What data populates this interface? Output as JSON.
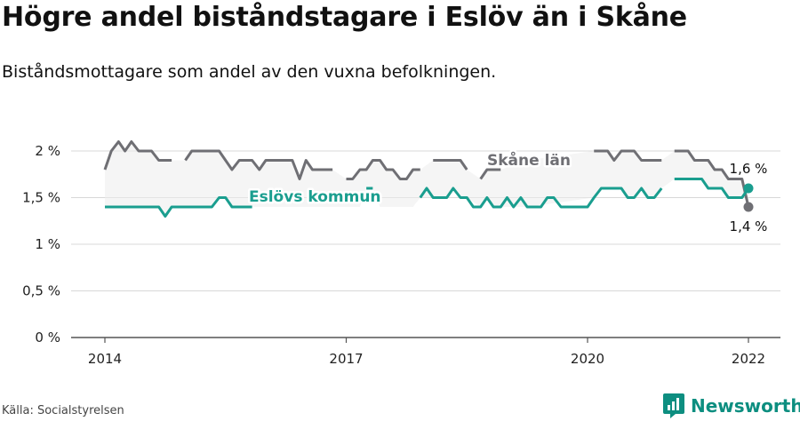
{
  "title": "Högre andel biståndstagare i Eslöv än i Skåne",
  "subtitle": "Biståndsmottagare som andel av den vuxna befolkningen.",
  "source": "Källa: Socialstyrelsen",
  "brand": "Newsworthy",
  "colors": {
    "skane": "#6f6f74",
    "eslov": "#1a9e8f",
    "band": "#ececec",
    "axis": "#555555",
    "grid": "#d8d8d8",
    "brand": "#0d8e80"
  },
  "chart_data": {
    "type": "line",
    "title": "Högre andel biståndstagare i Eslöv än i Skåne",
    "subtitle": "Biståndsmottagare som andel av den vuxna befolkningen.",
    "xlabel": "",
    "ylabel": "",
    "x_unit": "year (monthly observations)",
    "xlim": [
      2013.92,
      2022.35
    ],
    "ylim": [
      0,
      2.1
    ],
    "yticks": [
      0,
      0.5,
      1,
      1.5,
      2
    ],
    "ytick_labels": [
      "0 %",
      "0,5 %",
      "1 %",
      "1,5 %",
      "2 %"
    ],
    "xticks": [
      2014,
      2017,
      2020,
      2022
    ],
    "xtick_labels": [
      "2014",
      "2017",
      "2020",
      "2022"
    ],
    "grid": true,
    "legend": "inline labels",
    "series": [
      {
        "name": "Skåne län",
        "label_color": "skane",
        "end_label": "1,4 %",
        "points": [
          [
            2014.0,
            1.8
          ],
          [
            2014.08,
            2.0
          ],
          [
            2014.17,
            2.1
          ],
          [
            2014.25,
            2.0
          ],
          [
            2014.33,
            2.1
          ],
          [
            2014.42,
            2.0
          ],
          [
            2014.5,
            2.0
          ],
          [
            2014.58,
            2.0
          ],
          [
            2014.67,
            1.9
          ],
          [
            2014.75,
            1.9
          ],
          [
            2014.83,
            1.9
          ],
          [
            2014.92,
            null
          ],
          [
            2015.0,
            1.9
          ],
          [
            2015.08,
            2.0
          ],
          [
            2015.17,
            2.0
          ],
          [
            2015.25,
            2.0
          ],
          [
            2015.33,
            2.0
          ],
          [
            2015.42,
            2.0
          ],
          [
            2015.5,
            1.9
          ],
          [
            2015.58,
            1.8
          ],
          [
            2015.67,
            1.9
          ],
          [
            2015.75,
            1.9
          ],
          [
            2015.83,
            1.9
          ],
          [
            2015.92,
            1.8
          ],
          [
            2016.0,
            1.9
          ],
          [
            2016.08,
            1.9
          ],
          [
            2016.17,
            1.9
          ],
          [
            2016.25,
            1.9
          ],
          [
            2016.33,
            1.9
          ],
          [
            2016.42,
            1.7
          ],
          [
            2016.5,
            1.9
          ],
          [
            2016.58,
            1.8
          ],
          [
            2016.67,
            1.8
          ],
          [
            2016.75,
            1.8
          ],
          [
            2016.83,
            1.8
          ],
          [
            2016.92,
            null
          ],
          [
            2017.0,
            1.7
          ],
          [
            2017.08,
            1.7
          ],
          [
            2017.17,
            1.8
          ],
          [
            2017.25,
            1.8
          ],
          [
            2017.33,
            1.9
          ],
          [
            2017.42,
            1.9
          ],
          [
            2017.5,
            1.8
          ],
          [
            2017.58,
            1.8
          ],
          [
            2017.67,
            1.7
          ],
          [
            2017.75,
            1.7
          ],
          [
            2017.83,
            1.8
          ],
          [
            2017.92,
            1.8
          ],
          [
            2018.0,
            null
          ],
          [
            2018.08,
            1.9
          ],
          [
            2018.17,
            1.9
          ],
          [
            2018.25,
            1.9
          ],
          [
            2018.33,
            1.9
          ],
          [
            2018.42,
            1.9
          ],
          [
            2018.5,
            1.8
          ],
          [
            2018.58,
            null
          ],
          [
            2018.67,
            1.7
          ],
          [
            2018.75,
            1.8
          ],
          [
            2018.83,
            1.8
          ],
          [
            2018.92,
            1.8
          ],
          [
            2019.0,
            null
          ],
          [
            2019.25,
            1.9
          ],
          [
            2019.33,
            null
          ],
          [
            2020.08,
            2.0
          ],
          [
            2020.17,
            2.0
          ],
          [
            2020.25,
            2.0
          ],
          [
            2020.33,
            1.9
          ],
          [
            2020.42,
            2.0
          ],
          [
            2020.5,
            2.0
          ],
          [
            2020.58,
            2.0
          ],
          [
            2020.67,
            1.9
          ],
          [
            2020.75,
            1.9
          ],
          [
            2020.83,
            1.9
          ],
          [
            2020.92,
            1.9
          ],
          [
            2021.0,
            null
          ],
          [
            2021.08,
            2.0
          ],
          [
            2021.17,
            2.0
          ],
          [
            2021.25,
            2.0
          ],
          [
            2021.33,
            1.9
          ],
          [
            2021.42,
            1.9
          ],
          [
            2021.5,
            1.9
          ],
          [
            2021.58,
            1.8
          ],
          [
            2021.67,
            1.8
          ],
          [
            2021.75,
            1.7
          ],
          [
            2021.83,
            1.7
          ],
          [
            2021.92,
            1.7
          ],
          [
            2022.0,
            1.4
          ]
        ]
      },
      {
        "name": "Eslövs kommun",
        "label_color": "eslov",
        "end_label": "1,6 %",
        "points": [
          [
            2014.0,
            1.4
          ],
          [
            2014.08,
            1.4
          ],
          [
            2014.17,
            1.4
          ],
          [
            2014.25,
            1.4
          ],
          [
            2014.33,
            1.4
          ],
          [
            2014.42,
            1.4
          ],
          [
            2014.5,
            1.4
          ],
          [
            2014.58,
            1.4
          ],
          [
            2014.67,
            1.4
          ],
          [
            2014.75,
            1.3
          ],
          [
            2014.83,
            1.4
          ],
          [
            2014.92,
            1.4
          ],
          [
            2015.0,
            1.4
          ],
          [
            2015.08,
            1.4
          ],
          [
            2015.17,
            1.4
          ],
          [
            2015.25,
            1.4
          ],
          [
            2015.33,
            1.4
          ],
          [
            2015.42,
            1.5
          ],
          [
            2015.5,
            1.5
          ],
          [
            2015.58,
            1.4
          ],
          [
            2015.67,
            1.4
          ],
          [
            2015.75,
            1.4
          ],
          [
            2015.83,
            1.4
          ],
          [
            2015.92,
            null
          ],
          [
            2017.25,
            1.6
          ],
          [
            2017.33,
            1.6
          ],
          [
            2017.42,
            null
          ],
          [
            2017.92,
            1.5
          ],
          [
            2018.0,
            1.6
          ],
          [
            2018.08,
            1.5
          ],
          [
            2018.17,
            1.5
          ],
          [
            2018.25,
            1.5
          ],
          [
            2018.33,
            1.6
          ],
          [
            2018.42,
            1.5
          ],
          [
            2018.5,
            1.5
          ],
          [
            2018.58,
            1.4
          ],
          [
            2018.67,
            1.4
          ],
          [
            2018.75,
            1.5
          ],
          [
            2018.83,
            1.4
          ],
          [
            2018.92,
            1.4
          ],
          [
            2019.0,
            1.5
          ],
          [
            2019.08,
            1.4
          ],
          [
            2019.17,
            1.5
          ],
          [
            2019.25,
            1.4
          ],
          [
            2019.33,
            1.4
          ],
          [
            2019.42,
            1.4
          ],
          [
            2019.5,
            1.5
          ],
          [
            2019.58,
            1.5
          ],
          [
            2019.67,
            1.4
          ],
          [
            2019.75,
            1.4
          ],
          [
            2019.83,
            1.4
          ],
          [
            2019.92,
            1.4
          ],
          [
            2020.0,
            1.4
          ],
          [
            2020.08,
            1.5
          ],
          [
            2020.17,
            1.6
          ],
          [
            2020.25,
            1.6
          ],
          [
            2020.33,
            1.6
          ],
          [
            2020.42,
            1.6
          ],
          [
            2020.5,
            1.5
          ],
          [
            2020.58,
            1.5
          ],
          [
            2020.67,
            1.6
          ],
          [
            2020.75,
            1.5
          ],
          [
            2020.83,
            1.5
          ],
          [
            2020.92,
            1.6
          ],
          [
            2021.0,
            null
          ],
          [
            2021.08,
            1.7
          ],
          [
            2021.17,
            1.7
          ],
          [
            2021.25,
            1.7
          ],
          [
            2021.33,
            1.7
          ],
          [
            2021.42,
            1.7
          ],
          [
            2021.5,
            1.6
          ],
          [
            2021.58,
            1.6
          ],
          [
            2021.67,
            1.6
          ],
          [
            2021.75,
            1.5
          ],
          [
            2021.83,
            1.5
          ],
          [
            2021.92,
            1.5
          ],
          [
            2022.0,
            1.6
          ]
        ]
      }
    ]
  }
}
